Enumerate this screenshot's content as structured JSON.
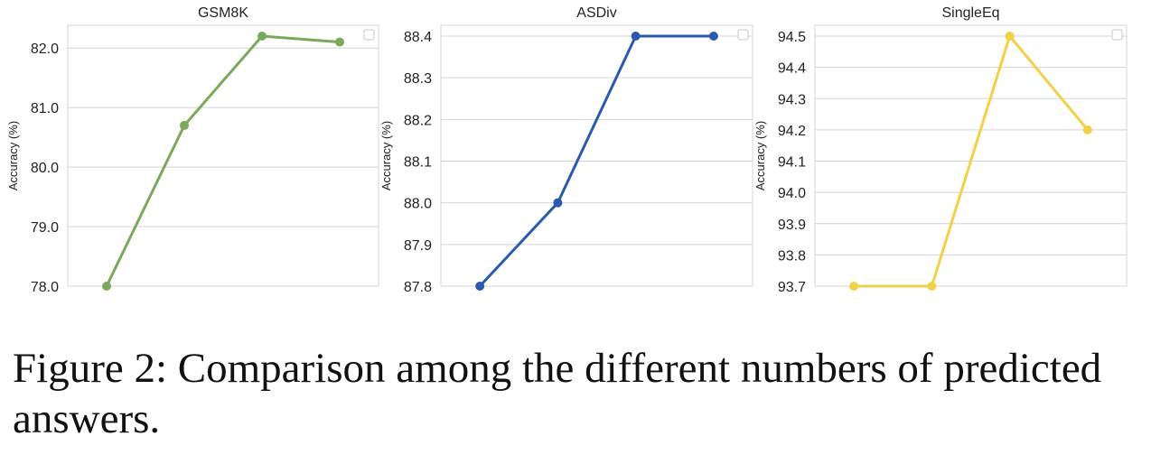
{
  "figure": {
    "caption": "Figure 2: Comparison among the different numbers of predicted answers."
  },
  "chart_data": [
    {
      "type": "line",
      "title": "GSM8K",
      "ylabel": "Accuracy (%)",
      "xlabel": "",
      "x": [
        1,
        2,
        3,
        4
      ],
      "series": [
        {
          "values": [
            78.0,
            80.7,
            82.2,
            82.1
          ]
        }
      ],
      "ylim": [
        78.0,
        82.2
      ],
      "yticks": [
        78.0,
        79.0,
        80.0,
        81.0,
        82.0
      ],
      "ytick_labels": [
        "78.0",
        "79.0",
        "80.0",
        "81.0",
        "82.0"
      ],
      "color": "#7aa95c",
      "grid": "horizontal",
      "legend": "top-right (empty)"
    },
    {
      "type": "line",
      "title": "ASDiv",
      "ylabel": "Accuracy (%)",
      "xlabel": "",
      "x": [
        1,
        2,
        3,
        4
      ],
      "series": [
        {
          "values": [
            87.8,
            88.0,
            88.4,
            88.4
          ]
        }
      ],
      "ylim": [
        87.8,
        88.4
      ],
      "yticks": [
        87.8,
        87.9,
        88.0,
        88.1,
        88.2,
        88.3,
        88.4
      ],
      "ytick_labels": [
        "87.8",
        "87.9",
        "88.0",
        "88.1",
        "88.2",
        "88.3",
        "88.4"
      ],
      "color": "#2a5aaf",
      "grid": "horizontal",
      "legend": "top-right (empty)"
    },
    {
      "type": "line",
      "title": "SingleEq",
      "ylabel": "Accuracy (%)",
      "xlabel": "",
      "x": [
        1,
        2,
        3,
        4
      ],
      "series": [
        {
          "values": [
            93.7,
            93.7,
            94.5,
            94.2
          ]
        }
      ],
      "ylim": [
        93.7,
        94.5
      ],
      "yticks": [
        93.7,
        93.8,
        93.9,
        94.0,
        94.1,
        94.2,
        94.3,
        94.4,
        94.5
      ],
      "ytick_labels": [
        "93.7",
        "93.8",
        "93.9",
        "94.0",
        "94.1",
        "94.2",
        "94.3",
        "94.4",
        "94.5"
      ],
      "color": "#f2d048",
      "grid": "horizontal",
      "legend": "top-right (empty)"
    }
  ]
}
